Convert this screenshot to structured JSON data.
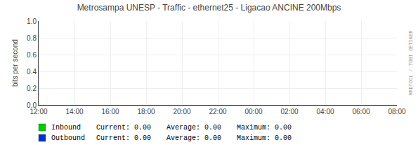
{
  "chart_data": {
    "type": "line",
    "title": "Metrosampa UNESP - Traffic - ethernet25 - Ligacao ANCINE 200Mbps",
    "ylabel": "bits per second",
    "categories": [
      "12:00",
      "14:00",
      "16:00",
      "18:00",
      "20:00",
      "22:00",
      "00:00",
      "02:00",
      "04:00",
      "06:00",
      "08:00"
    ],
    "series": [
      {
        "name": "Inbound",
        "color": "#00cc00",
        "values": [
          null,
          null,
          null,
          null,
          null,
          null,
          null,
          null,
          null,
          null,
          null
        ],
        "stats": [
          {
            "value": 0,
            "label": "0.00"
          },
          {
            "value": 0,
            "label": "0.00"
          },
          {
            "value": 0,
            "label": "0.00"
          }
        ]
      },
      {
        "name": "Outbound",
        "color": "#0033cc",
        "values": [
          null,
          null,
          null,
          null,
          null,
          null,
          null,
          null,
          null,
          null,
          null
        ],
        "stats": [
          {
            "value": 0,
            "label": "0.00"
          },
          {
            "value": 0,
            "label": "0.00"
          },
          {
            "value": 0,
            "label": "0.00"
          }
        ]
      }
    ],
    "stat_names": [
      "Current:",
      "Average:",
      "Maximum:"
    ],
    "ylim": [
      0.0,
      1.0
    ],
    "yticks": [
      {
        "value": 0,
        "label": "0.0"
      },
      0.2,
      0.4,
      0.6,
      0.8,
      {
        "value": 1,
        "label": "1.0"
      }
    ],
    "grid": true,
    "annotations": [
      "RRDTOOL / TOBI OETIKER"
    ]
  }
}
